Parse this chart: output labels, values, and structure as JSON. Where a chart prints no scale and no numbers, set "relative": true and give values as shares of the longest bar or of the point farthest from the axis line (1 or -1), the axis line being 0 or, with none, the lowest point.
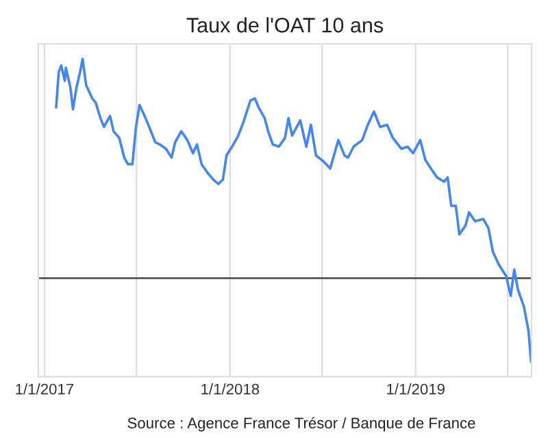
{
  "chart_data": {
    "type": "line",
    "title": "Taux de l'OAT 10 ans",
    "relative": true,
    "grid": "x",
    "marker": "none",
    "line_style": "solid",
    "annotations": [
      "Source : Agence France Trésor / Banque de France"
    ],
    "xlim": [
      "2016-12-20",
      "2019-08-17"
    ],
    "xticks": [
      {
        "value": "2017-01-01",
        "label": "1/1/2017"
      },
      {
        "value": "2017-07-01",
        "label": null
      },
      {
        "value": "2018-01-01",
        "label": "1/1/2018"
      },
      {
        "value": "2018-07-01",
        "label": null
      },
      {
        "value": "2019-01-01",
        "label": "1/1/2019"
      },
      {
        "value": "2019-07-01",
        "label": null
      }
    ],
    "x": [
      "2017-01-24",
      "2017-01-29",
      "2017-02-03",
      "2017-02-10",
      "2017-02-12",
      "2017-02-21",
      "2017-02-26",
      "2017-03-05",
      "2017-03-12",
      "2017-03-17",
      "2017-03-24",
      "2017-04-05",
      "2017-04-12",
      "2017-04-21",
      "2017-04-28",
      "2017-05-10",
      "2017-05-17",
      "2017-05-28",
      "2017-06-07",
      "2017-06-14",
      "2017-06-23",
      "2017-06-30",
      "2017-07-07",
      "2017-07-17",
      "2017-07-26",
      "2017-08-07",
      "2017-08-16",
      "2017-08-28",
      "2017-09-08",
      "2017-09-15",
      "2017-09-27",
      "2017-10-09",
      "2017-10-20",
      "2017-10-28",
      "2017-11-06",
      "2017-11-18",
      "2017-11-29",
      "2017-12-09",
      "2017-12-18",
      "2017-12-25",
      "2018-01-05",
      "2018-01-17",
      "2018-01-27",
      "2018-02-10",
      "2018-02-19",
      "2018-02-26",
      "2018-03-10",
      "2018-03-17",
      "2018-03-26",
      "2018-04-07",
      "2018-04-19",
      "2018-04-26",
      "2018-05-03",
      "2018-05-19",
      "2018-05-31",
      "2018-06-09",
      "2018-06-19",
      "2018-07-05",
      "2018-07-17",
      "2018-08-02",
      "2018-08-14",
      "2018-08-21",
      "2018-09-01",
      "2018-09-18",
      "2018-09-29",
      "2018-10-11",
      "2018-10-23",
      "2018-11-06",
      "2018-11-17",
      "2018-12-04",
      "2018-12-16",
      "2018-12-27",
      "2019-01-10",
      "2019-01-20",
      "2019-01-31",
      "2019-02-12",
      "2019-02-26",
      "2019-03-05",
      "2019-03-12",
      "2019-03-21",
      "2019-03-28",
      "2019-04-09",
      "2019-04-16",
      "2019-04-28",
      "2019-05-14",
      "2019-05-24",
      "2019-06-02",
      "2019-06-14",
      "2019-06-28",
      "2019-07-07",
      "2019-07-14",
      "2019-07-21",
      "2019-08-02",
      "2019-08-11",
      "2019-08-16"
    ],
    "series": [
      {
        "color": "#4285f4",
        "values": [
          0.78,
          0.94,
          0.97,
          0.9,
          0.96,
          0.87,
          0.77,
          0.87,
          0.94,
          1.0,
          0.88,
          0.82,
          0.8,
          0.73,
          0.69,
          0.74,
          0.67,
          0.64,
          0.55,
          0.52,
          0.52,
          0.69,
          0.79,
          0.74,
          0.69,
          0.62,
          0.61,
          0.59,
          0.55,
          0.62,
          0.67,
          0.63,
          0.57,
          0.61,
          0.52,
          0.48,
          0.45,
          0.43,
          0.45,
          0.56,
          0.6,
          0.65,
          0.71,
          0.81,
          0.82,
          0.78,
          0.73,
          0.67,
          0.61,
          0.6,
          0.64,
          0.73,
          0.65,
          0.72,
          0.6,
          0.7,
          0.56,
          0.53,
          0.5,
          0.63,
          0.56,
          0.55,
          0.6,
          0.63,
          0.7,
          0.76,
          0.69,
          0.7,
          0.64,
          0.59,
          0.6,
          0.57,
          0.63,
          0.54,
          0.5,
          0.46,
          0.44,
          0.46,
          0.33,
          0.33,
          0.2,
          0.24,
          0.3,
          0.26,
          0.27,
          0.23,
          0.12,
          0.06,
          0.01,
          -0.08,
          0.04,
          -0.05,
          -0.13,
          -0.24,
          -0.38
        ]
      }
    ]
  }
}
